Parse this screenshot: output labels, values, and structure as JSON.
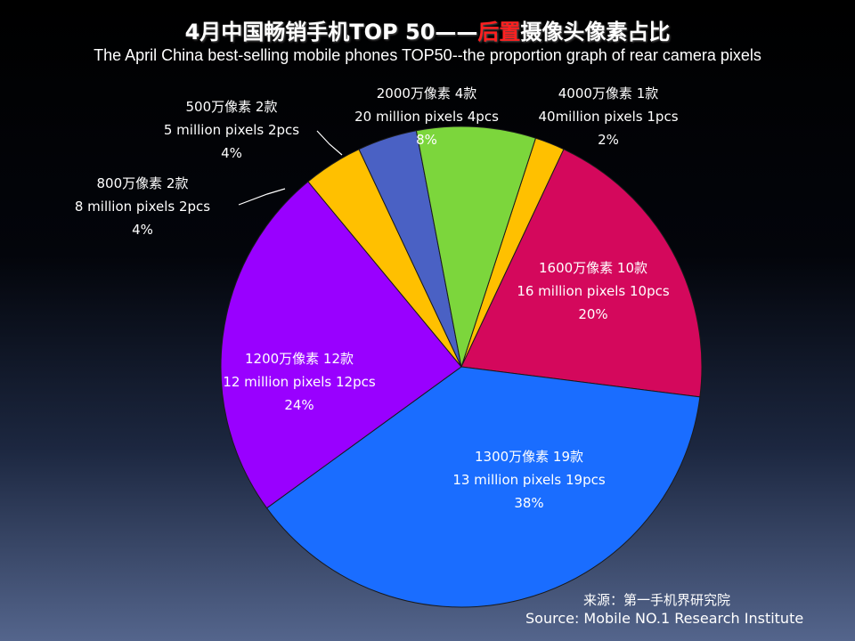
{
  "title_parts": [
    "4月中国畅销手机TOP 50——",
    "后置",
    "摄像头像素占比"
  ],
  "subtitle": "The April China best-selling mobile phones TOP50--the proportion graph of rear camera pixels",
  "source_cn": "来源：第一手机界研究院",
  "source_en": "Source: Mobile NO.1 Research Institute",
  "colors": {
    "title_highlight": "#ff2020",
    "background_top": "#000000",
    "background_bottom": "#54658c"
  },
  "chart_data": {
    "type": "pie",
    "total": 50,
    "unit": "pcs",
    "categories": [
      "4000万像素",
      "1600万像素",
      "1300万像素",
      "1200万像素",
      "800万像素",
      "500万像素",
      "2000万像素"
    ],
    "values": [
      1,
      10,
      19,
      12,
      2,
      2,
      4
    ],
    "percentages": [
      2,
      20,
      38,
      24,
      4,
      4,
      8
    ],
    "colors": [
      "#ffc000",
      "#d4085c",
      "#1a6dff",
      "#9900ff",
      "#ffc000",
      "#4a61c4",
      "#7cd63c"
    ],
    "labels": [
      [
        "4000万像素  1款",
        "40million pixels 1pcs",
        "2%"
      ],
      [
        "1600万像素 10款",
        "16 million pixels 10pcs",
        "20%"
      ],
      [
        "1300万像素 19款",
        "13 million pixels 19pcs",
        "38%"
      ],
      [
        "1200万像素  12款",
        "12 million pixels 12pcs",
        "24%"
      ],
      [
        "800万像素  2款",
        "8 million pixels 2pcs",
        "4%"
      ],
      [
        "500万像素  2款",
        "5 million pixels 2pcs",
        "4%"
      ],
      [
        "2000万像素 4款",
        "20 million pixels 4pcs",
        "8%"
      ]
    ]
  }
}
